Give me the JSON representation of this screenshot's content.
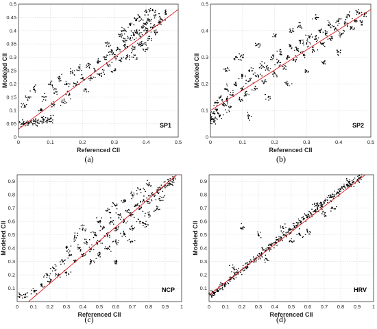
{
  "chart_data": [
    {
      "type": "scatter",
      "panel_caption": "(a)",
      "panel_label": "SP1",
      "xlabel": "Referenced CII",
      "ylabel": "Modeled CII",
      "xlim": [
        0,
        0.5
      ],
      "ylim": [
        0,
        0.5
      ],
      "xticks": [
        "0",
        "0.1",
        "0.2",
        "0.3",
        "0.4",
        "0.5"
      ],
      "yticks": [
        "0",
        "0.05",
        "0.1",
        "0.15",
        "0.2",
        "0.25",
        "0.3",
        "0.35",
        "0.4",
        "0.45",
        "0.5"
      ],
      "grid": true,
      "marker_color": "#000000",
      "fit_color": "#e31a1c",
      "fit_line": {
        "x": [
          0,
          0.5
        ],
        "y": [
          0.03,
          0.48
        ]
      },
      "points": [
        [
          0.01,
          0.05
        ],
        [
          0.02,
          0.05
        ],
        [
          0.03,
          0.052
        ],
        [
          0.04,
          0.055
        ],
        [
          0.05,
          0.06
        ],
        [
          0.06,
          0.055
        ],
        [
          0.07,
          0.06
        ],
        [
          0.08,
          0.065
        ],
        [
          0.09,
          0.06
        ],
        [
          0.1,
          0.07
        ],
        [
          0.02,
          0.12
        ],
        [
          0.03,
          0.15
        ],
        [
          0.05,
          0.18
        ],
        [
          0.07,
          0.1
        ],
        [
          0.08,
          0.15
        ],
        [
          0.1,
          0.2
        ],
        [
          0.11,
          0.12
        ],
        [
          0.12,
          0.17
        ],
        [
          0.13,
          0.22
        ],
        [
          0.14,
          0.13
        ],
        [
          0.15,
          0.2
        ],
        [
          0.16,
          0.16
        ],
        [
          0.17,
          0.24
        ],
        [
          0.18,
          0.2
        ],
        [
          0.19,
          0.26
        ],
        [
          0.2,
          0.22
        ],
        [
          0.21,
          0.18
        ],
        [
          0.22,
          0.27
        ],
        [
          0.23,
          0.22
        ],
        [
          0.24,
          0.25
        ],
        [
          0.25,
          0.28
        ],
        [
          0.26,
          0.24
        ],
        [
          0.27,
          0.3
        ],
        [
          0.28,
          0.27
        ],
        [
          0.29,
          0.32
        ],
        [
          0.3,
          0.3
        ],
        [
          0.31,
          0.33
        ],
        [
          0.32,
          0.29
        ],
        [
          0.33,
          0.36
        ],
        [
          0.34,
          0.34
        ],
        [
          0.35,
          0.37
        ],
        [
          0.36,
          0.33
        ],
        [
          0.37,
          0.4
        ],
        [
          0.38,
          0.38
        ],
        [
          0.39,
          0.42
        ],
        [
          0.4,
          0.4
        ],
        [
          0.41,
          0.44
        ],
        [
          0.42,
          0.41
        ],
        [
          0.43,
          0.46
        ],
        [
          0.44,
          0.43
        ],
        [
          0.35,
          0.42
        ],
        [
          0.38,
          0.45
        ],
        [
          0.4,
          0.47
        ],
        [
          0.42,
          0.48
        ],
        [
          0.36,
          0.3
        ],
        [
          0.39,
          0.35
        ],
        [
          0.41,
          0.37
        ],
        [
          0.33,
          0.4
        ],
        [
          0.37,
          0.44
        ],
        [
          0.4,
          0.33
        ],
        [
          0.3,
          0.25
        ],
        [
          0.28,
          0.35
        ],
        [
          0.32,
          0.38
        ],
        [
          0.34,
          0.3
        ],
        [
          0.36,
          0.39
        ],
        [
          0.38,
          0.35
        ],
        [
          0.4,
          0.43
        ],
        [
          0.43,
          0.39
        ],
        [
          0.45,
          0.44
        ],
        [
          0.46,
          0.47
        ]
      ]
    },
    {
      "type": "scatter",
      "panel_caption": "(b)",
      "panel_label": "SP2",
      "xlabel": "Referenced CII",
      "ylabel": "Modeled CII",
      "xlim": [
        0,
        0.5
      ],
      "ylim": [
        0,
        0.5
      ],
      "xticks": [
        "0",
        "0.1",
        "0.2",
        "0.3",
        "0.4",
        "0.5"
      ],
      "yticks": [
        "0",
        "0.1",
        "0.2",
        "0.3",
        "0.4",
        "0.5"
      ],
      "grid": true,
      "marker_color": "#000000",
      "fit_color": "#e31a1c",
      "fit_line": {
        "x": [
          0,
          0.5
        ],
        "y": [
          0.1,
          0.48
        ]
      },
      "points": [
        [
          0.0,
          0.06
        ],
        [
          0.0,
          0.08
        ],
        [
          0.005,
          0.07
        ],
        [
          0.01,
          0.09
        ],
        [
          0.01,
          0.06
        ],
        [
          0.02,
          0.1
        ],
        [
          0.02,
          0.13
        ],
        [
          0.03,
          0.08
        ],
        [
          0.03,
          0.15
        ],
        [
          0.04,
          0.12
        ],
        [
          0.05,
          0.14
        ],
        [
          0.05,
          0.18
        ],
        [
          0.06,
          0.11
        ],
        [
          0.07,
          0.16
        ],
        [
          0.08,
          0.2
        ],
        [
          0.09,
          0.14
        ],
        [
          0.1,
          0.18
        ],
        [
          0.1,
          0.23
        ],
        [
          0.11,
          0.16
        ],
        [
          0.12,
          0.21
        ],
        [
          0.13,
          0.25
        ],
        [
          0.14,
          0.19
        ],
        [
          0.15,
          0.23
        ],
        [
          0.16,
          0.27
        ],
        [
          0.17,
          0.21
        ],
        [
          0.18,
          0.26
        ],
        [
          0.19,
          0.3
        ],
        [
          0.2,
          0.24
        ],
        [
          0.21,
          0.28
        ],
        [
          0.22,
          0.32
        ],
        [
          0.23,
          0.26
        ],
        [
          0.24,
          0.3
        ],
        [
          0.25,
          0.34
        ],
        [
          0.26,
          0.29
        ],
        [
          0.27,
          0.33
        ],
        [
          0.28,
          0.36
        ],
        [
          0.29,
          0.31
        ],
        [
          0.3,
          0.35
        ],
        [
          0.31,
          0.38
        ],
        [
          0.32,
          0.33
        ],
        [
          0.33,
          0.37
        ],
        [
          0.34,
          0.4
        ],
        [
          0.35,
          0.35
        ],
        [
          0.36,
          0.39
        ],
        [
          0.37,
          0.42
        ],
        [
          0.38,
          0.37
        ],
        [
          0.39,
          0.41
        ],
        [
          0.4,
          0.44
        ],
        [
          0.41,
          0.39
        ],
        [
          0.42,
          0.43
        ],
        [
          0.43,
          0.46
        ],
        [
          0.44,
          0.41
        ],
        [
          0.45,
          0.44
        ],
        [
          0.46,
          0.47
        ],
        [
          0.47,
          0.43
        ],
        [
          0.48,
          0.46
        ],
        [
          0.1,
          0.3
        ],
        [
          0.15,
          0.35
        ],
        [
          0.2,
          0.38
        ],
        [
          0.25,
          0.4
        ],
        [
          0.12,
          0.08
        ],
        [
          0.18,
          0.15
        ],
        [
          0.24,
          0.2
        ],
        [
          0.3,
          0.25
        ],
        [
          0.35,
          0.28
        ],
        [
          0.4,
          0.32
        ],
        [
          0.05,
          0.25
        ],
        [
          0.08,
          0.3
        ],
        [
          0.28,
          0.42
        ],
        [
          0.33,
          0.45
        ]
      ]
    },
    {
      "type": "scatter",
      "panel_caption": "(c)",
      "panel_label": "NCP",
      "xlabel": "Referenced CII",
      "ylabel": "Modeled CII",
      "xlim": [
        0,
        1
      ],
      "ylim": [
        0,
        0.95
      ],
      "xticks": [
        "0",
        "0.1",
        "0.2",
        "0.3",
        "0.4",
        "0.5",
        "0.6",
        "0.7",
        "0.8",
        "0.9",
        "1"
      ],
      "yticks": [
        "0.1",
        "0.2",
        "0.3",
        "0.4",
        "0.5",
        "0.6",
        "0.7",
        "0.8",
        "0.9"
      ],
      "grid": true,
      "marker_color": "#000000",
      "fit_color": "#e31a1c",
      "fit_line": {
        "x": [
          0.07,
          0.97
        ],
        "y": [
          0.0,
          0.95
        ]
      },
      "points": [
        [
          0.02,
          0.05
        ],
        [
          0.05,
          0.05
        ],
        [
          0.1,
          0.08
        ],
        [
          0.15,
          0.12
        ],
        [
          0.18,
          0.2
        ],
        [
          0.2,
          0.15
        ],
        [
          0.22,
          0.25
        ],
        [
          0.25,
          0.2
        ],
        [
          0.28,
          0.3
        ],
        [
          0.3,
          0.22
        ],
        [
          0.32,
          0.35
        ],
        [
          0.35,
          0.3
        ],
        [
          0.38,
          0.4
        ],
        [
          0.4,
          0.35
        ],
        [
          0.42,
          0.45
        ],
        [
          0.45,
          0.4
        ],
        [
          0.47,
          0.5
        ],
        [
          0.5,
          0.45
        ],
        [
          0.52,
          0.55
        ],
        [
          0.55,
          0.5
        ],
        [
          0.57,
          0.6
        ],
        [
          0.6,
          0.55
        ],
        [
          0.62,
          0.65
        ],
        [
          0.65,
          0.6
        ],
        [
          0.67,
          0.68
        ],
        [
          0.7,
          0.65
        ],
        [
          0.72,
          0.72
        ],
        [
          0.75,
          0.7
        ],
        [
          0.77,
          0.76
        ],
        [
          0.8,
          0.75
        ],
        [
          0.82,
          0.8
        ],
        [
          0.85,
          0.82
        ],
        [
          0.87,
          0.85
        ],
        [
          0.9,
          0.87
        ],
        [
          0.92,
          0.9
        ],
        [
          0.95,
          0.92
        ],
        [
          0.5,
          0.6
        ],
        [
          0.55,
          0.68
        ],
        [
          0.6,
          0.72
        ],
        [
          0.65,
          0.75
        ],
        [
          0.7,
          0.8
        ],
        [
          0.75,
          0.84
        ],
        [
          0.8,
          0.88
        ],
        [
          0.45,
          0.3
        ],
        [
          0.5,
          0.35
        ],
        [
          0.55,
          0.4
        ],
        [
          0.6,
          0.45
        ],
        [
          0.65,
          0.5
        ],
        [
          0.7,
          0.55
        ],
        [
          0.75,
          0.6
        ],
        [
          0.8,
          0.65
        ],
        [
          0.85,
          0.7
        ],
        [
          0.4,
          0.55
        ],
        [
          0.35,
          0.48
        ],
        [
          0.3,
          0.4
        ],
        [
          0.6,
          0.3
        ],
        [
          0.7,
          0.45
        ],
        [
          0.78,
          0.58
        ],
        [
          0.88,
          0.78
        ],
        [
          0.93,
          0.88
        ]
      ]
    },
    {
      "type": "scatter",
      "panel_caption": "(d)",
      "panel_label": "HRV",
      "xlabel": "Referenced CII",
      "ylabel": "Modeled CII",
      "xlim": [
        0,
        1
      ],
      "ylim": [
        0,
        0.95
      ],
      "xticks": [
        "0",
        "0.1",
        "0.2",
        "0.3",
        "0.4",
        "0.5",
        "0.6",
        "0.7",
        "0.8",
        "0.9",
        "1"
      ],
      "yticks": [
        "0.1",
        "0.2",
        "0.3",
        "0.4",
        "0.5",
        "0.6",
        "0.7",
        "0.8",
        "0.9"
      ],
      "grid": true,
      "marker_color": "#000000",
      "fit_color": "#e31a1c",
      "fit_line": {
        "x": [
          0.0,
          0.95
        ],
        "y": [
          0.05,
          0.95
        ]
      },
      "points": [
        [
          0.01,
          0.05
        ],
        [
          0.02,
          0.07
        ],
        [
          0.03,
          0.06
        ],
        [
          0.05,
          0.08
        ],
        [
          0.06,
          0.1
        ],
        [
          0.08,
          0.12
        ],
        [
          0.1,
          0.13
        ],
        [
          0.12,
          0.16
        ],
        [
          0.14,
          0.18
        ],
        [
          0.16,
          0.2
        ],
        [
          0.18,
          0.22
        ],
        [
          0.2,
          0.24
        ],
        [
          0.22,
          0.26
        ],
        [
          0.24,
          0.28
        ],
        [
          0.26,
          0.3
        ],
        [
          0.28,
          0.32
        ],
        [
          0.3,
          0.34
        ],
        [
          0.32,
          0.36
        ],
        [
          0.34,
          0.38
        ],
        [
          0.36,
          0.4
        ],
        [
          0.38,
          0.42
        ],
        [
          0.4,
          0.44
        ],
        [
          0.42,
          0.46
        ],
        [
          0.44,
          0.48
        ],
        [
          0.46,
          0.5
        ],
        [
          0.48,
          0.52
        ],
        [
          0.5,
          0.54
        ],
        [
          0.52,
          0.56
        ],
        [
          0.54,
          0.58
        ],
        [
          0.56,
          0.6
        ],
        [
          0.58,
          0.62
        ],
        [
          0.6,
          0.64
        ],
        [
          0.62,
          0.66
        ],
        [
          0.64,
          0.68
        ],
        [
          0.66,
          0.7
        ],
        [
          0.68,
          0.72
        ],
        [
          0.7,
          0.74
        ],
        [
          0.72,
          0.76
        ],
        [
          0.74,
          0.78
        ],
        [
          0.76,
          0.8
        ],
        [
          0.78,
          0.82
        ],
        [
          0.8,
          0.84
        ],
        [
          0.82,
          0.86
        ],
        [
          0.84,
          0.87
        ],
        [
          0.86,
          0.88
        ],
        [
          0.88,
          0.9
        ],
        [
          0.9,
          0.91
        ],
        [
          0.92,
          0.93
        ],
        [
          0.2,
          0.55
        ],
        [
          0.3,
          0.5
        ],
        [
          0.5,
          0.45
        ],
        [
          0.6,
          0.52
        ],
        [
          0.7,
          0.65
        ],
        [
          0.15,
          0.25
        ],
        [
          0.35,
          0.32
        ],
        [
          0.45,
          0.55
        ],
        [
          0.65,
          0.72
        ],
        [
          0.75,
          0.7
        ],
        [
          0.85,
          0.9
        ],
        [
          0.55,
          0.5
        ]
      ]
    }
  ]
}
